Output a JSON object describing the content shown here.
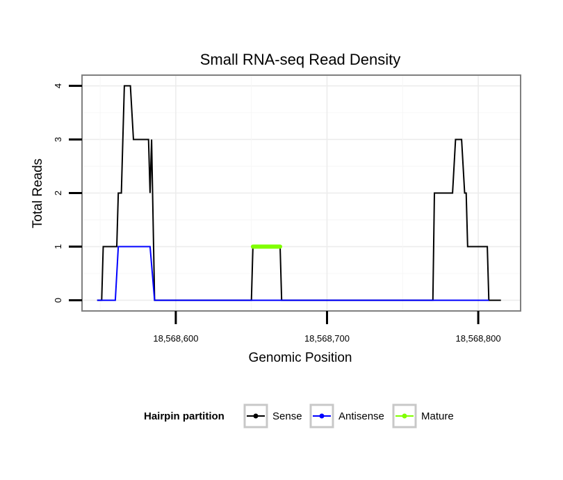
{
  "chart_data": {
    "type": "line",
    "title": "Small RNA-seq Read Density",
    "xlabel": "Genomic Position",
    "ylabel": "Total Reads",
    "xlim": [
      18568538,
      18568828
    ],
    "ylim": [
      -0.2,
      4.2
    ],
    "x_ticks": [
      18568600,
      18568700,
      18568800
    ],
    "x_tick_labels": [
      "18,568,600",
      "18,568,700",
      "18,568,800"
    ],
    "y_ticks": [
      0,
      1,
      2,
      3,
      4
    ],
    "y_tick_labels": [
      "0",
      "1",
      "2",
      "3",
      "4"
    ],
    "grid": true,
    "legend": {
      "title": "Hairpin partition",
      "position": "bottom",
      "entries": [
        "Sense",
        "Antisense",
        "Mature"
      ]
    },
    "series": [
      {
        "name": "Sense",
        "color": "#000000",
        "x": [
          18568548,
          18568551,
          18568552,
          18568560,
          18568561,
          18568562,
          18568563,
          18568564,
          18568566,
          18568568,
          18568570,
          18568572,
          18568574,
          18568582,
          18568583,
          18568584,
          18568586,
          18568650,
          18568651,
          18568668,
          18568669,
          18568670,
          18568672,
          18568758,
          18568770,
          18568771,
          18568780,
          18568781,
          18568783,
          18568785,
          18568789,
          18568791,
          18568792,
          18568793,
          18568795,
          18568806,
          18568807,
          18568810,
          18568815
        ],
        "y": [
          0,
          0,
          1,
          1,
          1,
          2,
          2,
          2,
          4,
          4,
          4,
          3,
          3,
          3,
          2,
          3,
          0,
          0,
          1,
          1,
          1,
          0,
          0,
          0,
          0,
          2,
          2,
          2,
          2,
          3,
          3,
          2,
          2,
          1,
          1,
          1,
          0,
          0,
          0
        ]
      },
      {
        "name": "Antisense",
        "color": "#0000ff",
        "x": [
          18568548,
          18568560,
          18568562,
          18568563,
          18568580,
          18568583,
          18568586,
          18568650,
          18568670,
          18568672,
          18568758,
          18568770,
          18568780,
          18568790,
          18568800,
          18568806,
          18568807
        ],
        "y": [
          0,
          0,
          1,
          1,
          1,
          1,
          0,
          0,
          0,
          0,
          0,
          0,
          0,
          0,
          0,
          0,
          0
        ]
      },
      {
        "name": "Mature",
        "color": "#80ff00",
        "x": [
          18568651,
          18568669
        ],
        "y": [
          1,
          1
        ]
      }
    ]
  }
}
